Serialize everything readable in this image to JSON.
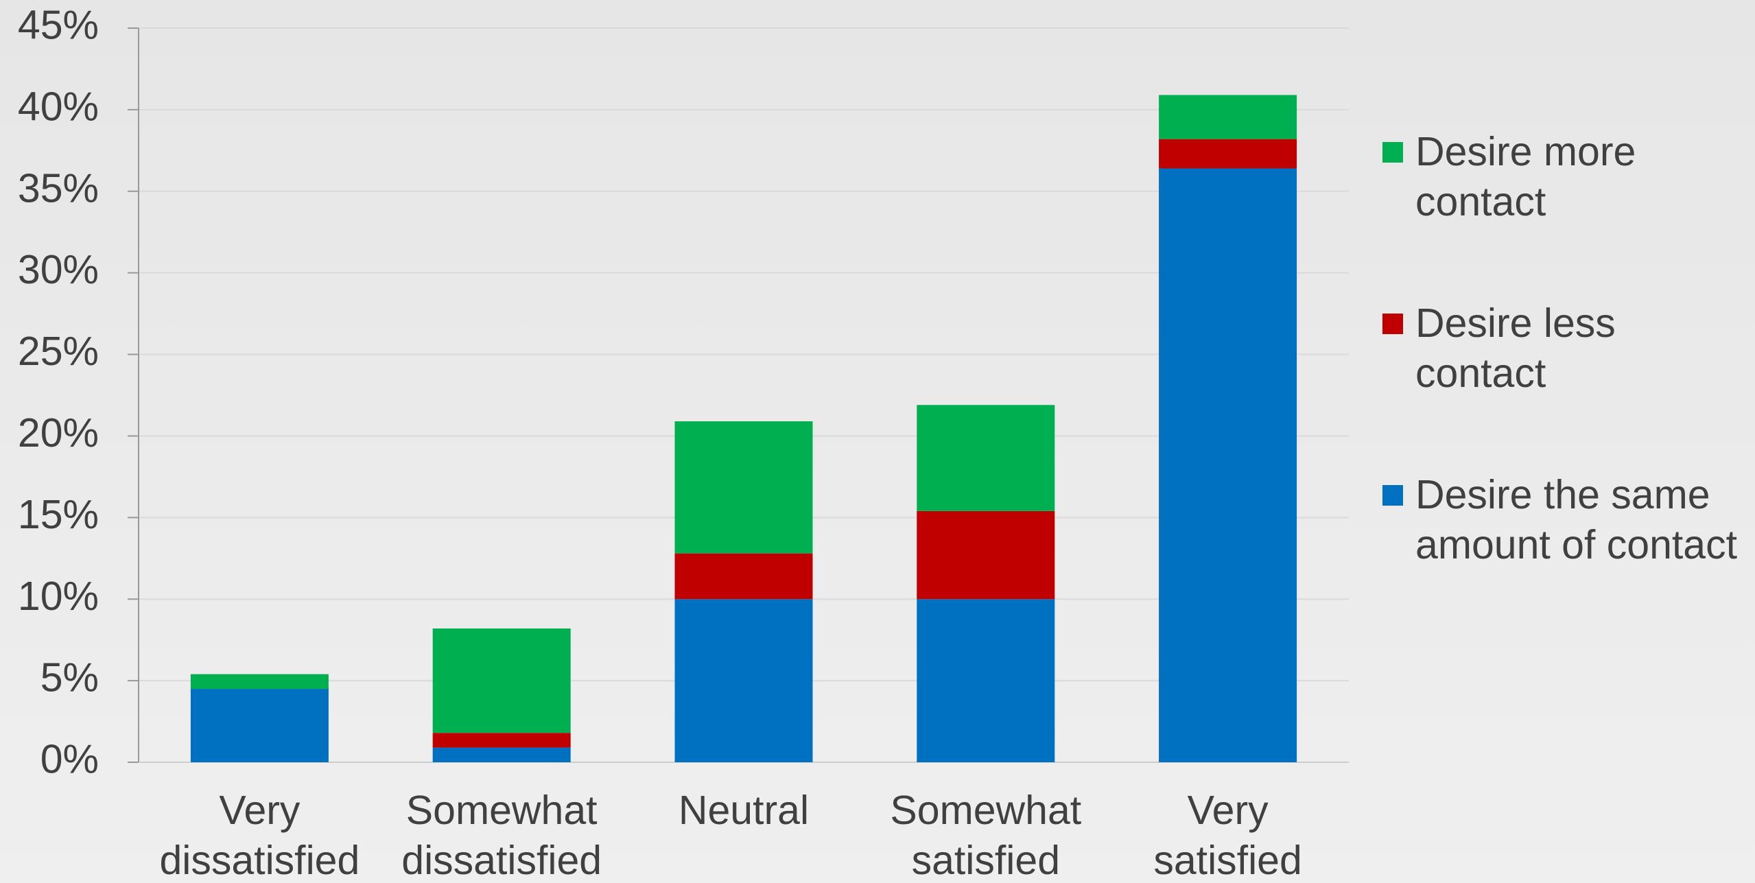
{
  "chart_data": {
    "type": "stacked_bar",
    "categories": [
      "Very dissatisfied",
      "Somewhat dissatisfied",
      "Neutral",
      "Somewhat satisfied",
      "Very satisfied"
    ],
    "series": [
      {
        "name": "Desire the same amount of contact",
        "color": "#0070c0",
        "values": [
          4.5,
          0.9,
          10.0,
          10.0,
          36.4
        ]
      },
      {
        "name": "Desire less contact",
        "color": "#c00000",
        "values": [
          0,
          0.9,
          2.8,
          5.4,
          1.8
        ]
      },
      {
        "name": "Desire more contact",
        "color": "#00b050",
        "values": [
          0.9,
          6.4,
          8.1,
          6.5,
          2.7
        ]
      }
    ],
    "ylim": [
      0,
      45
    ],
    "yticks": [
      {
        "value": 0,
        "label": "0%"
      },
      {
        "value": 5,
        "label": "5%"
      },
      {
        "value": 10,
        "label": "10%"
      },
      {
        "value": 15,
        "label": "15%"
      },
      {
        "value": 20,
        "label": "20%"
      },
      {
        "value": 25,
        "label": "25%"
      },
      {
        "value": 30,
        "label": "30%"
      },
      {
        "value": 35,
        "label": "35%"
      },
      {
        "value": 40,
        "label": "40%"
      },
      {
        "value": 45,
        "label": "45%"
      }
    ],
    "grid": true,
    "legend": "right"
  }
}
